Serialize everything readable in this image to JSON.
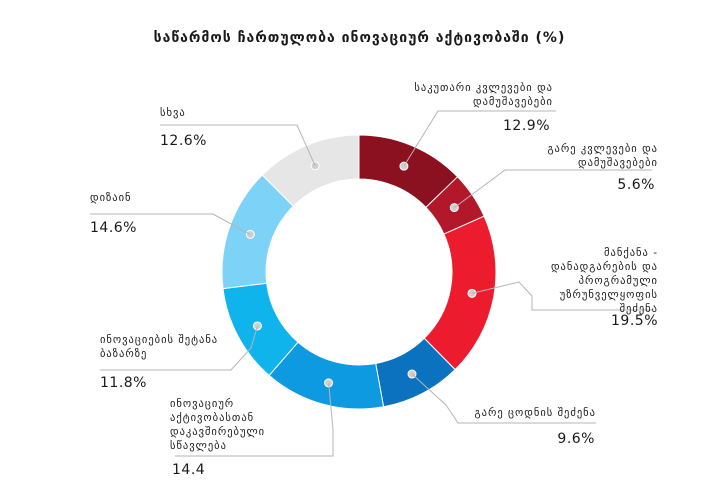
{
  "chart_data": {
    "type": "donut",
    "title": "საწარმოს ჩართულობა ინოვაციურ აქტივობაში (%)",
    "categories": [
      "საკუთარი კვლევები და დამუშავებები",
      "გარე კვლევები და დამუშავებები",
      "მანქანა - დანადგარების და პროგრამული უზრუნველყოფის შეძენა",
      "გარე ცოდნის შეძენა",
      "ინოვაციურ აქტივობასთან დაკავშირებული სწავლება",
      "ინოვაციების შეტანა ბაზარზე",
      "დიზაინ",
      "სხვა"
    ],
    "values": [
      12.9,
      5.6,
      19.5,
      9.6,
      14.4,
      11.8,
      14.6,
      12.6
    ],
    "value_labels": [
      "12.9%",
      "5.6%",
      "19.5%",
      "9.6%",
      "14.4",
      "11.8%",
      "14.6%",
      "12.6%"
    ],
    "colors": [
      "#8b1020",
      "#b3182a",
      "#ec1c2e",
      "#0a72be",
      "#0d9ae0",
      "#0fb4ec",
      "#7dd3f7",
      "#e6e6e6"
    ],
    "legend": "none"
  }
}
